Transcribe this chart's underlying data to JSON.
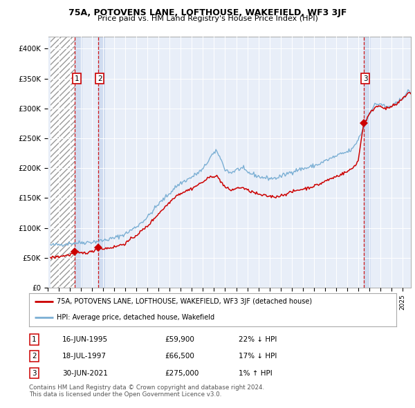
{
  "title": "75A, POTOVENS LANE, LOFTHOUSE, WAKEFIELD, WF3 3JF",
  "subtitle": "Price paid vs. HM Land Registry's House Price Index (HPI)",
  "ylim": [
    0,
    420000
  ],
  "yticks": [
    0,
    50000,
    100000,
    150000,
    200000,
    250000,
    300000,
    350000,
    400000
  ],
  "ytick_labels": [
    "£0",
    "£50K",
    "£100K",
    "£150K",
    "£200K",
    "£250K",
    "£300K",
    "£350K",
    "£400K"
  ],
  "xlim_start": 1993.25,
  "xlim_end": 2025.75,
  "hatch_end": 1995.45,
  "sale_color": "#cc0000",
  "hpi_color": "#7bafd4",
  "chart_bg": "#e8eef8",
  "hatch_bg": "#ffffff",
  "band_color": "#d0dcf0",
  "grid_color": "#ffffff",
  "sale_points": [
    {
      "date_num": 1995.45,
      "price": 59900,
      "label": "1"
    },
    {
      "date_num": 1997.54,
      "price": 66500,
      "label": "2"
    },
    {
      "date_num": 2021.49,
      "price": 275000,
      "label": "3"
    }
  ],
  "legend_line1": "75A, POTOVENS LANE, LOFTHOUSE, WAKEFIELD, WF3 3JF (detached house)",
  "legend_line2": "HPI: Average price, detached house, Wakefield",
  "table": [
    {
      "num": "1",
      "date": "16-JUN-1995",
      "price": "£59,900",
      "hpi": "22% ↓ HPI"
    },
    {
      "num": "2",
      "date": "18-JUL-1997",
      "price": "£66,500",
      "hpi": "17% ↓ HPI"
    },
    {
      "num": "3",
      "date": "30-JUN-2021",
      "price": "£275,000",
      "hpi": "1% ↑ HPI"
    }
  ],
  "footnote": "Contains HM Land Registry data © Crown copyright and database right 2024.\nThis data is licensed under the Open Government Licence v3.0.",
  "hpi_anchors": [
    [
      1993.25,
      71000
    ],
    [
      1994.0,
      72000
    ],
    [
      1995.0,
      74000
    ],
    [
      1996.0,
      75500
    ],
    [
      1997.0,
      76500
    ],
    [
      1998.0,
      79000
    ],
    [
      1999.0,
      83000
    ],
    [
      2000.0,
      90000
    ],
    [
      2001.0,
      102000
    ],
    [
      2002.0,
      118000
    ],
    [
      2003.0,
      140000
    ],
    [
      2004.0,
      158000
    ],
    [
      2004.5,
      168000
    ],
    [
      2005.0,
      175000
    ],
    [
      2006.0,
      185000
    ],
    [
      2007.0,
      198000
    ],
    [
      2007.8,
      222000
    ],
    [
      2008.3,
      228000
    ],
    [
      2009.0,
      198000
    ],
    [
      2009.5,
      192000
    ],
    [
      2010.0,
      197000
    ],
    [
      2010.5,
      200000
    ],
    [
      2011.0,
      193000
    ],
    [
      2011.5,
      190000
    ],
    [
      2012.0,
      186000
    ],
    [
      2012.5,
      184000
    ],
    [
      2013.0,
      183000
    ],
    [
      2013.5,
      183000
    ],
    [
      2014.0,
      186000
    ],
    [
      2014.5,
      190000
    ],
    [
      2015.0,
      194000
    ],
    [
      2015.5,
      197000
    ],
    [
      2016.0,
      199000
    ],
    [
      2016.5,
      201000
    ],
    [
      2017.0,
      204000
    ],
    [
      2017.5,
      207000
    ],
    [
      2018.0,
      212000
    ],
    [
      2018.5,
      216000
    ],
    [
      2019.0,
      220000
    ],
    [
      2019.5,
      224000
    ],
    [
      2020.0,
      227000
    ],
    [
      2020.5,
      232000
    ],
    [
      2021.0,
      248000
    ],
    [
      2021.5,
      268000
    ],
    [
      2022.0,
      292000
    ],
    [
      2022.5,
      306000
    ],
    [
      2023.0,
      308000
    ],
    [
      2023.5,
      302000
    ],
    [
      2024.0,
      304000
    ],
    [
      2024.5,
      308000
    ],
    [
      2025.0,
      318000
    ],
    [
      2025.5,
      328000
    ]
  ],
  "red_anchors": [
    [
      1993.25,
      50000
    ],
    [
      1994.0,
      52000
    ],
    [
      1995.0,
      55000
    ],
    [
      1995.45,
      59900
    ],
    [
      1996.0,
      57500
    ],
    [
      1997.0,
      60000
    ],
    [
      1997.54,
      66500
    ],
    [
      1998.0,
      65000
    ],
    [
      1999.0,
      68000
    ],
    [
      2000.0,
      74000
    ],
    [
      2001.0,
      88000
    ],
    [
      2002.0,
      103000
    ],
    [
      2003.0,
      124000
    ],
    [
      2004.0,
      143000
    ],
    [
      2004.5,
      153000
    ],
    [
      2005.0,
      158000
    ],
    [
      2006.0,
      166000
    ],
    [
      2007.0,
      177000
    ],
    [
      2007.8,
      187000
    ],
    [
      2008.3,
      186000
    ],
    [
      2009.0,
      168000
    ],
    [
      2009.5,
      163000
    ],
    [
      2010.0,
      166000
    ],
    [
      2010.5,
      168000
    ],
    [
      2011.0,
      163000
    ],
    [
      2011.5,
      160000
    ],
    [
      2012.0,
      156000
    ],
    [
      2012.5,
      154000
    ],
    [
      2013.0,
      153000
    ],
    [
      2013.5,
      152000
    ],
    [
      2014.0,
      154000
    ],
    [
      2014.5,
      157000
    ],
    [
      2015.0,
      160000
    ],
    [
      2015.5,
      163000
    ],
    [
      2016.0,
      165000
    ],
    [
      2016.5,
      167000
    ],
    [
      2017.0,
      170000
    ],
    [
      2017.5,
      173000
    ],
    [
      2018.0,
      178000
    ],
    [
      2018.5,
      182000
    ],
    [
      2019.0,
      186000
    ],
    [
      2019.5,
      190000
    ],
    [
      2020.0,
      194000
    ],
    [
      2020.5,
      200000
    ],
    [
      2021.0,
      212000
    ],
    [
      2021.49,
      275000
    ],
    [
      2021.7,
      280000
    ],
    [
      2022.0,
      290000
    ],
    [
      2022.5,
      302000
    ],
    [
      2023.0,
      305000
    ],
    [
      2023.5,
      299000
    ],
    [
      2024.0,
      303000
    ],
    [
      2024.5,
      307000
    ],
    [
      2025.0,
      316000
    ],
    [
      2025.5,
      326000
    ]
  ]
}
